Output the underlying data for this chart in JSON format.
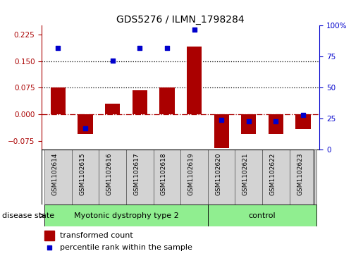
{
  "title": "GDS5276 / ILMN_1798284",
  "samples": [
    "GSM1102614",
    "GSM1102615",
    "GSM1102616",
    "GSM1102617",
    "GSM1102618",
    "GSM1102619",
    "GSM1102620",
    "GSM1102621",
    "GSM1102622",
    "GSM1102623"
  ],
  "bar_values": [
    0.075,
    -0.055,
    0.03,
    0.068,
    0.075,
    0.19,
    -0.095,
    -0.055,
    -0.055,
    -0.042
  ],
  "dot_values": [
    82,
    17,
    72,
    82,
    82,
    97,
    24,
    23,
    23,
    28
  ],
  "bar_color": "#aa0000",
  "dot_color": "#0000cc",
  "ylim_left": [
    -0.1,
    0.25
  ],
  "ylim_right": [
    0,
    100
  ],
  "yticks_left": [
    -0.075,
    0,
    0.075,
    0.15,
    0.225
  ],
  "yticks_right": [
    0,
    25,
    50,
    75,
    100
  ],
  "hline_dotted": [
    0.075,
    0.15
  ],
  "hline_dash_dot_color": "#aa0000",
  "group1_label": "Myotonic dystrophy type 2",
  "group2_label": "control",
  "group1_indices": [
    0,
    1,
    2,
    3,
    4,
    5
  ],
  "group2_indices": [
    6,
    7,
    8,
    9
  ],
  "disease_state_label": "disease state",
  "legend_bar": "transformed count",
  "legend_dot": "percentile rank within the sample",
  "bar_width": 0.55,
  "group_color": "#90ee90",
  "bg_color": "#d3d3d3",
  "title_fontsize": 10,
  "tick_fontsize": 7.5,
  "label_fontsize": 7.5,
  "legend_fontsize": 8
}
